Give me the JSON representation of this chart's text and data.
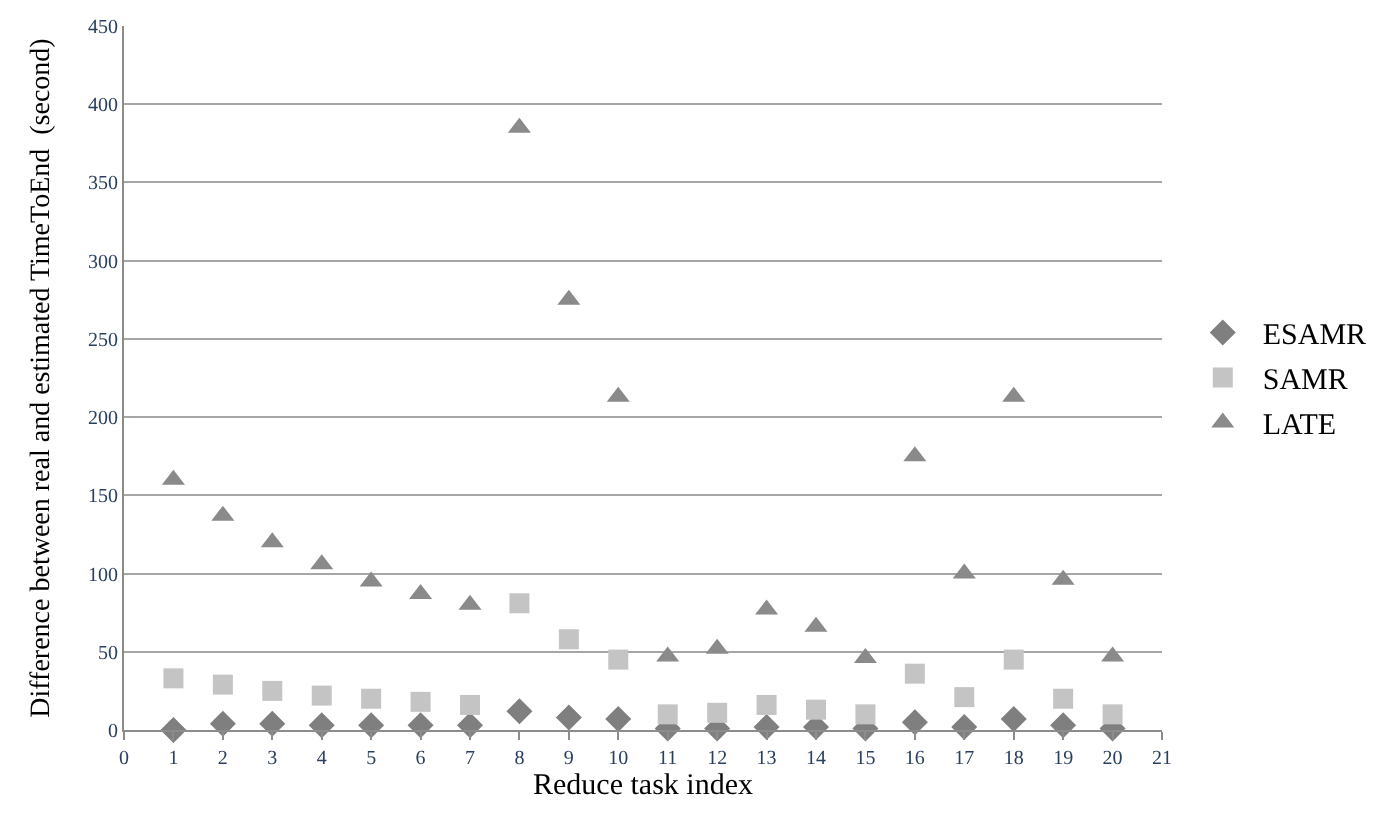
{
  "chart_data": {
    "type": "scatter",
    "xlabel": "Reduce task index",
    "ylabel": "Difference between real and estimated TimeToEnd  (second)",
    "x": [
      1,
      2,
      3,
      4,
      5,
      6,
      7,
      8,
      9,
      10,
      11,
      12,
      13,
      14,
      15,
      16,
      17,
      18,
      19,
      20
    ],
    "series": [
      {
        "name": "ESAMR",
        "color": "#7f7f7f",
        "marker": "diamond",
        "values": [
          0,
          4,
          4,
          3,
          3,
          3,
          3,
          12,
          8,
          7,
          1,
          1,
          2,
          2,
          1,
          5,
          2,
          7,
          3,
          1
        ]
      },
      {
        "name": "SAMR",
        "color": "#c4c4c4",
        "marker": "square",
        "values": [
          33,
          29,
          25,
          22,
          20,
          18,
          16,
          81,
          58,
          45,
          10,
          11,
          16,
          13,
          10,
          36,
          21,
          45,
          20,
          10
        ]
      },
      {
        "name": "LATE",
        "color": "#8a8a8a",
        "marker": "triangle",
        "values": [
          160,
          137,
          120,
          106,
          95,
          87,
          80,
          385,
          275,
          213,
          47,
          52,
          77,
          66,
          46,
          175,
          100,
          213,
          96,
          47
        ]
      }
    ],
    "xlim": [
      0,
      21
    ],
    "xticks": [
      0,
      1,
      2,
      3,
      4,
      5,
      6,
      7,
      8,
      9,
      10,
      11,
      12,
      13,
      14,
      15,
      16,
      17,
      18,
      19,
      20,
      21
    ],
    "ylim": [
      0,
      450
    ],
    "yticks": [
      0,
      50,
      100,
      150,
      200,
      250,
      300,
      350,
      400,
      450
    ],
    "grid": "y",
    "legend": "right"
  }
}
